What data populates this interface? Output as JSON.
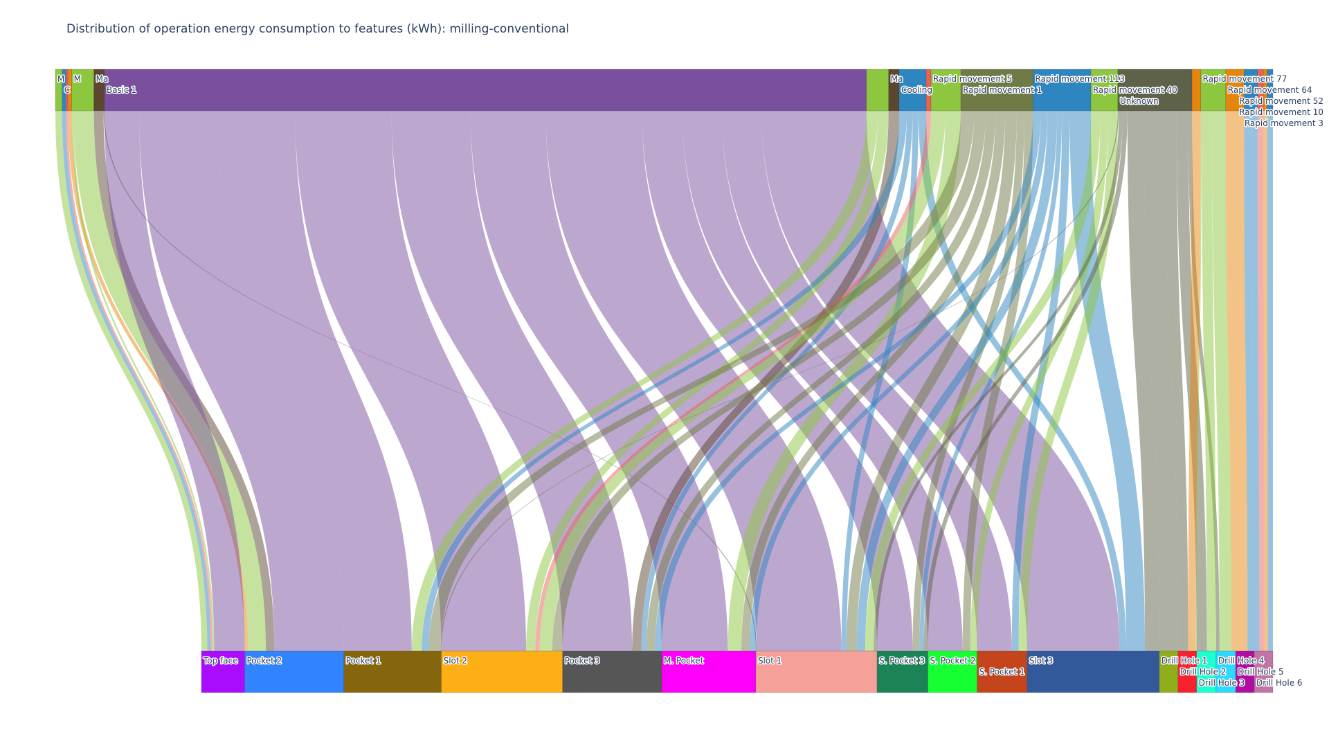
{
  "chart_data": {
    "type": "sankey",
    "title": "Distribution of operation energy consumption to features (kWh): milling-conventional",
    "orientation": "vertical",
    "sources": [
      {
        "label": "M",
        "color": "#8dc63f"
      },
      {
        "label": "C",
        "color": "#2e86c1"
      },
      {
        "label": "",
        "color": "#e8625b"
      },
      {
        "label": "",
        "color": "#e6850e"
      },
      {
        "label": "M",
        "color": "#8dc63f"
      },
      {
        "label": "Ma",
        "color": "#5b4630"
      },
      {
        "label": "Basic 1",
        "color": "#7a4f9e"
      },
      {
        "label": "",
        "color": "#8dc63f"
      },
      {
        "label": "Ma",
        "color": "#5b4630"
      },
      {
        "label": "Cooling",
        "color": "#2e86c1"
      },
      {
        "label": "",
        "color": "#e8625b"
      },
      {
        "label": "Rapid movement 5",
        "color": "#8dc63f"
      },
      {
        "label": "Rapid movement 1",
        "color": "#6f7a45"
      },
      {
        "label": "Rapid movement 113",
        "color": "#2e86c1"
      },
      {
        "label": "Rapid movement 40",
        "color": "#8dc63f"
      },
      {
        "label": "Unknown",
        "color": "#5e6248"
      },
      {
        "label": "",
        "color": "#e6850e"
      },
      {
        "label": "Rapid movement 77",
        "color": "#8dc63f"
      },
      {
        "label": "Rapid movement 64",
        "color": "#e6850e"
      },
      {
        "label": "Rapid movement 52",
        "color": "#2e86c1"
      },
      {
        "label": "",
        "color": "#e8625b"
      },
      {
        "label": "Rapid movement 10",
        "color": "#e6850e"
      },
      {
        "label": "Rapid movement 3",
        "color": "#2e86c1"
      }
    ],
    "targets": [
      {
        "label": "Top face",
        "color": "#aa0dfe"
      },
      {
        "label": "Pocket 2",
        "color": "#3283fe"
      },
      {
        "label": "Pocket 1",
        "color": "#85660d"
      },
      {
        "label": "Slot 2",
        "color": "#feaf16"
      },
      {
        "label": "Pocket 3",
        "color": "#565656"
      },
      {
        "label": "M. Pocket",
        "color": "#fe00fa"
      },
      {
        "label": "Slot 1",
        "color": "#f6a09a"
      },
      {
        "label": "S. Pocket 3",
        "color": "#1c8356"
      },
      {
        "label": "S. Pocket 2",
        "color": "#16ff32"
      },
      {
        "label": "S. Pocket 1",
        "color": "#c4451c"
      },
      {
        "label": "Slot 3",
        "color": "#325a9b"
      },
      {
        "label": "Drill Hole 1",
        "color": "#90ad1c"
      },
      {
        "label": "Drill Hole 2",
        "color": "#f7222e"
      },
      {
        "label": "Drill Hole 3",
        "color": "#1cffce"
      },
      {
        "label": "Drill Hole 4",
        "color": "#2ed9ff"
      },
      {
        "label": "Drill Hole 5",
        "color": "#b10da1"
      },
      {
        "label": "Drill Hole 6",
        "color": "#c075a6"
      }
    ],
    "links": [
      [
        0,
        0,
        7
      ],
      [
        1,
        0,
        4
      ],
      [
        2,
        0,
        2
      ],
      [
        3,
        1,
        4
      ],
      [
        4,
        0,
        2
      ],
      [
        4,
        1,
        21
      ],
      [
        5,
        1,
        10
      ],
      [
        5,
        6,
        1
      ],
      [
        6,
        0,
        36
      ],
      [
        6,
        1,
        82
      ],
      [
        6,
        2,
        80
      ],
      [
        6,
        3,
        100
      ],
      [
        6,
        4,
        82
      ],
      [
        6,
        5,
        78
      ],
      [
        6,
        6,
        100
      ],
      [
        6,
        7,
        42
      ],
      [
        6,
        8,
        41
      ],
      [
        6,
        9,
        41
      ],
      [
        6,
        10,
        109
      ],
      [
        7,
        2,
        12
      ],
      [
        7,
        3,
        11
      ],
      [
        8,
        4,
        11
      ],
      [
        9,
        2,
        8
      ],
      [
        9,
        4,
        6
      ],
      [
        9,
        6,
        6
      ],
      [
        9,
        10,
        8
      ],
      [
        10,
        3,
        5
      ],
      [
        11,
        3,
        15
      ],
      [
        11,
        5,
        16
      ],
      [
        12,
        2,
        14
      ],
      [
        12,
        3,
        12
      ],
      [
        12,
        4,
        10
      ],
      [
        12,
        5,
        10
      ],
      [
        12,
        6,
        12
      ],
      [
        12,
        7,
        8
      ],
      [
        12,
        8,
        9
      ],
      [
        13,
        4,
        8
      ],
      [
        13,
        5,
        7
      ],
      [
        13,
        6,
        10
      ],
      [
        13,
        7,
        5
      ],
      [
        13,
        9,
        8
      ],
      [
        13,
        10,
        22
      ],
      [
        14,
        8,
        8
      ],
      [
        14,
        9,
        10
      ],
      [
        14,
        6,
        10
      ],
      [
        15,
        2,
        1
      ],
      [
        15,
        6,
        4
      ],
      [
        15,
        7,
        5
      ],
      [
        15,
        10,
        17
      ],
      [
        15,
        11,
        22
      ],
      [
        15,
        12,
        12
      ],
      [
        15,
        13,
        12
      ],
      [
        15,
        14,
        4
      ],
      [
        16,
        12,
        9
      ],
      [
        17,
        12,
        1
      ],
      [
        17,
        13,
        11
      ],
      [
        17,
        14,
        14
      ],
      [
        18,
        14,
        5
      ],
      [
        18,
        15,
        14
      ],
      [
        19,
        15,
        8
      ],
      [
        19,
        16,
        6
      ],
      [
        20,
        16,
        6
      ],
      [
        21,
        16,
        4
      ],
      [
        22,
        16,
        6
      ]
    ]
  }
}
